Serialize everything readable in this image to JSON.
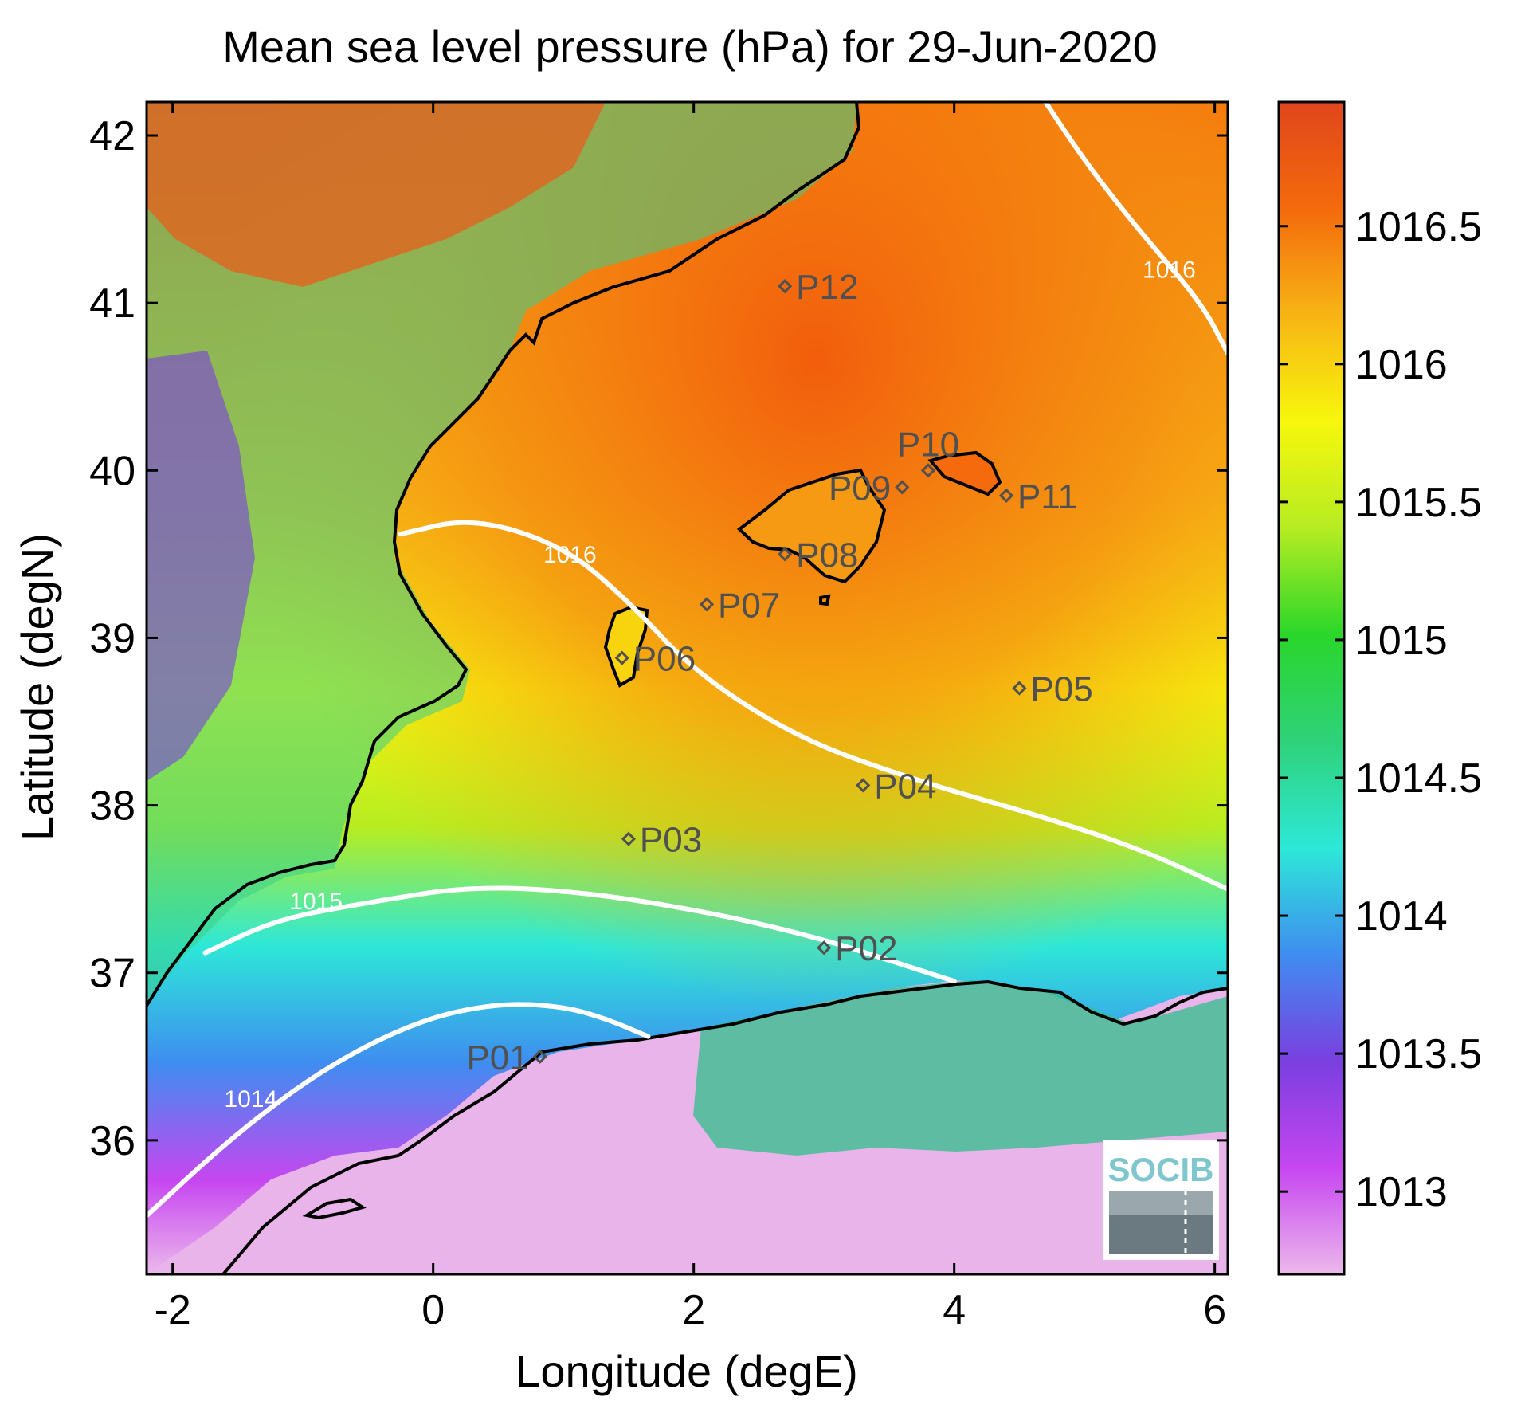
{
  "title": "Mean sea level pressure (hPa) for 29-Jun-2020",
  "x_axis": {
    "label": "Longitude (degE)",
    "ticks": [
      {
        "value": -2,
        "label": "-2"
      },
      {
        "value": 0,
        "label": "0"
      },
      {
        "value": 2,
        "label": "2"
      },
      {
        "value": 4,
        "label": "4"
      },
      {
        "value": 6,
        "label": "6"
      }
    ]
  },
  "y_axis": {
    "label": "Latitude (degN)",
    "ticks": [
      {
        "value": 36,
        "label": "36"
      },
      {
        "value": 37,
        "label": "37"
      },
      {
        "value": 38,
        "label": "38"
      },
      {
        "value": 39,
        "label": "39"
      },
      {
        "value": 40,
        "label": "40"
      },
      {
        "value": 41,
        "label": "41"
      },
      {
        "value": 42,
        "label": "42"
      }
    ]
  },
  "colorbar": {
    "range": [
      1012.7,
      1016.95
    ],
    "ticks": [
      {
        "value": 1013,
        "label": "1013"
      },
      {
        "value": 1013.5,
        "label": "1013.5"
      },
      {
        "value": 1014,
        "label": "1014"
      },
      {
        "value": 1014.5,
        "label": "1014.5"
      },
      {
        "value": 1015,
        "label": "1015"
      },
      {
        "value": 1015.5,
        "label": "1015.5"
      },
      {
        "value": 1016,
        "label": "1016"
      },
      {
        "value": 1016.5,
        "label": "1016.5"
      }
    ],
    "colors": [
      "#ecb8ec",
      "#c646f0",
      "#7a3fe0",
      "#3f8df0",
      "#2de8d8",
      "#2fd27a",
      "#2ad62a",
      "#b6ec22",
      "#f7f70d",
      "#f7b415",
      "#f46a0c",
      "#e0461c"
    ]
  },
  "stations": [
    {
      "name": "P01",
      "lon": 0.82,
      "lat": 36.5,
      "label_side": "left"
    },
    {
      "name": "P02",
      "lon": 3.0,
      "lat": 37.15,
      "label_side": "right"
    },
    {
      "name": "P03",
      "lon": 1.5,
      "lat": 37.8,
      "label_side": "right"
    },
    {
      "name": "P04",
      "lon": 3.3,
      "lat": 38.12,
      "label_side": "right"
    },
    {
      "name": "P05",
      "lon": 4.5,
      "lat": 38.7,
      "label_side": "right"
    },
    {
      "name": "P06",
      "lon": 1.45,
      "lat": 38.88,
      "label_side": "right"
    },
    {
      "name": "P07",
      "lon": 2.1,
      "lat": 39.2,
      "label_side": "right"
    },
    {
      "name": "P08",
      "lon": 2.7,
      "lat": 39.5,
      "label_side": "right"
    },
    {
      "name": "P09",
      "lon": 3.6,
      "lat": 39.9,
      "label_side": "left"
    },
    {
      "name": "P10",
      "lon": 3.8,
      "lat": 40.0,
      "label_side": "above"
    },
    {
      "name": "P11",
      "lon": 4.4,
      "lat": 39.85,
      "label_side": "right"
    },
    {
      "name": "P12",
      "lon": 2.7,
      "lat": 41.1,
      "label_side": "right"
    }
  ],
  "isobars": [
    {
      "value": "1014",
      "points": [
        [
          -2.2,
          35.55
        ],
        [
          -1.5,
          36.05
        ],
        [
          -0.8,
          36.45
        ],
        [
          -0.1,
          36.72
        ],
        [
          0.5,
          36.82
        ],
        [
          1.0,
          36.8
        ],
        [
          1.35,
          36.72
        ],
        [
          1.65,
          36.62
        ]
      ],
      "label_at": [
        -1.4,
        36.2
      ]
    },
    {
      "value": "1015",
      "points": [
        [
          -1.75,
          37.12
        ],
        [
          -1.2,
          37.32
        ],
        [
          -0.5,
          37.42
        ],
        [
          0.3,
          37.52
        ],
        [
          1.2,
          37.48
        ],
        [
          2.2,
          37.35
        ],
        [
          3.0,
          37.2
        ],
        [
          3.6,
          37.05
        ],
        [
          4.0,
          36.95
        ]
      ],
      "label_at": [
        -0.9,
        37.38
      ]
    },
    {
      "value": "1016",
      "points": [
        [
          -0.25,
          39.62
        ],
        [
          0.3,
          39.72
        ],
        [
          1.0,
          39.55
        ],
        [
          1.5,
          39.22
        ],
        [
          2.0,
          38.8
        ],
        [
          2.8,
          38.4
        ],
        [
          3.7,
          38.15
        ],
        [
          4.6,
          37.95
        ],
        [
          5.4,
          37.75
        ],
        [
          6.1,
          37.5
        ]
      ],
      "label_at": [
        1.05,
        39.45
      ]
    },
    {
      "value": "1016",
      "points": [
        [
          4.7,
          42.2
        ],
        [
          5.0,
          41.85
        ],
        [
          5.4,
          41.45
        ],
        [
          5.9,
          41.0
        ],
        [
          6.1,
          40.7
        ]
      ],
      "label_at": [
        5.65,
        41.15
      ]
    }
  ],
  "logo": {
    "text": "SOCIB"
  }
}
